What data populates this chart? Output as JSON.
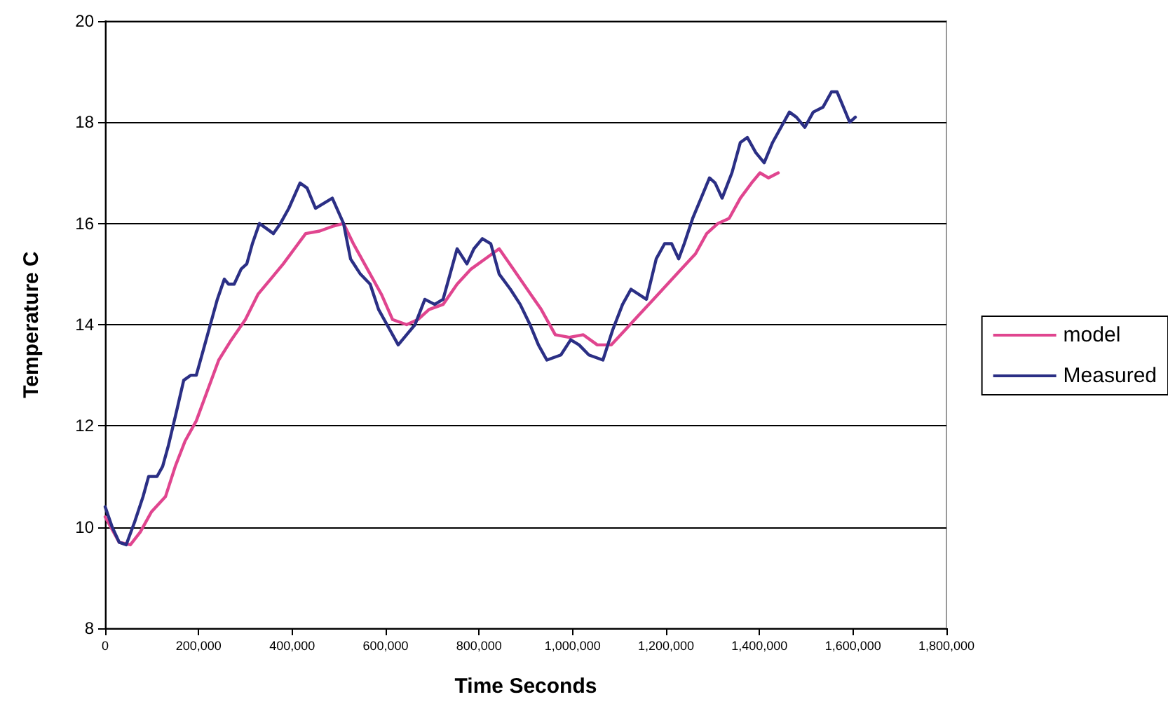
{
  "chart_data": {
    "type": "line",
    "xlabel": "Time Seconds",
    "ylabel": "Temperature C",
    "xlim": [
      0,
      1800000
    ],
    "ylim": [
      8,
      20
    ],
    "xticks": [
      {
        "value": 0,
        "label": "0"
      },
      {
        "value": 200000,
        "label": "200,000"
      },
      {
        "value": 400000,
        "label": "400,000"
      },
      {
        "value": 600000,
        "label": "600,000"
      },
      {
        "value": 800000,
        "label": "800,000"
      },
      {
        "value": 1000000,
        "label": "1,000,000"
      },
      {
        "value": 1200000,
        "label": "1,200,000"
      },
      {
        "value": 1400000,
        "label": "1,400,000"
      },
      {
        "value": 1600000,
        "label": "1,600,000"
      },
      {
        "value": 1800000,
        "label": "1,800,000"
      }
    ],
    "yticks": [
      8,
      10,
      12,
      14,
      16,
      18,
      20
    ],
    "grid": "y",
    "legend": "right",
    "marker": "none",
    "line_style": "solid",
    "series": [
      {
        "name": "model",
        "color": "#e0458f",
        "x": [
          0,
          30000,
          54000,
          75000,
          99000,
          129000,
          150000,
          171000,
          195000,
          219000,
          243000,
          270000,
          300000,
          327000,
          354000,
          381000,
          405000,
          429000,
          459000,
          489000,
          510000,
          531000,
          561000,
          591000,
          615000,
          645000,
          669000,
          693000,
          723000,
          753000,
          783000,
          813000,
          843000,
          873000,
          903000,
          933000,
          963000,
          993000,
          1023000,
          1053000,
          1083000,
          1113000,
          1143000,
          1173000,
          1203000,
          1233000,
          1263000,
          1287000,
          1311000,
          1335000,
          1359000,
          1383000,
          1401000,
          1419000,
          1440000
        ],
        "values": [
          10.2,
          9.7,
          9.65,
          9.9,
          10.3,
          10.6,
          11.2,
          11.7,
          12.1,
          12.7,
          13.3,
          13.7,
          14.1,
          14.6,
          14.9,
          15.2,
          15.5,
          15.8,
          15.85,
          15.95,
          16.0,
          15.6,
          15.1,
          14.6,
          14.1,
          14.0,
          14.1,
          14.3,
          14.4,
          14.8,
          15.1,
          15.3,
          15.5,
          15.1,
          14.7,
          14.3,
          13.8,
          13.75,
          13.8,
          13.6,
          13.6,
          13.9,
          14.2,
          14.5,
          14.8,
          15.1,
          15.4,
          15.8,
          16.0,
          16.1,
          16.5,
          16.8,
          17.0,
          16.9,
          17.0
        ]
      },
      {
        "name": "Measured",
        "color": "#2b2f85",
        "x": [
          0,
          15000,
          30000,
          45000,
          63000,
          81000,
          93000,
          111000,
          123000,
          135000,
          153000,
          168000,
          183000,
          195000,
          210000,
          225000,
          240000,
          255000,
          264000,
          276000,
          291000,
          303000,
          315000,
          330000,
          345000,
          360000,
          375000,
          393000,
          417000,
          432000,
          450000,
          468000,
          486000,
          510000,
          525000,
          546000,
          567000,
          585000,
          603000,
          627000,
          645000,
          663000,
          684000,
          705000,
          723000,
          741000,
          753000,
          774000,
          789000,
          807000,
          825000,
          843000,
          867000,
          888000,
          909000,
          927000,
          945000,
          975000,
          996000,
          1014000,
          1035000,
          1065000,
          1086000,
          1107000,
          1125000,
          1158000,
          1179000,
          1197000,
          1212000,
          1227000,
          1239000,
          1257000,
          1275000,
          1293000,
          1305000,
          1320000,
          1341000,
          1359000,
          1374000,
          1392000,
          1410000,
          1428000,
          1446000,
          1464000,
          1479000,
          1497000,
          1515000,
          1536000,
          1554000,
          1566000,
          1584000,
          1593000,
          1605000
        ],
        "values": [
          10.4,
          10.0,
          9.7,
          9.65,
          10.1,
          10.6,
          11.0,
          11.0,
          11.2,
          11.6,
          12.3,
          12.9,
          13.0,
          13.0,
          13.5,
          14.0,
          14.5,
          14.9,
          14.8,
          14.8,
          15.1,
          15.2,
          15.6,
          16.0,
          15.9,
          15.8,
          16.0,
          16.3,
          16.8,
          16.7,
          16.3,
          16.4,
          16.5,
          16.0,
          15.3,
          15.0,
          14.8,
          14.3,
          14.0,
          13.6,
          13.8,
          14.0,
          14.5,
          14.4,
          14.5,
          15.1,
          15.5,
          15.2,
          15.5,
          15.7,
          15.6,
          15.0,
          14.7,
          14.4,
          14.0,
          13.6,
          13.3,
          13.4,
          13.7,
          13.6,
          13.4,
          13.3,
          13.9,
          14.4,
          14.7,
          14.5,
          15.3,
          15.6,
          15.6,
          15.3,
          15.6,
          16.1,
          16.5,
          16.9,
          16.8,
          16.5,
          17.0,
          17.6,
          17.7,
          17.4,
          17.2,
          17.6,
          17.9,
          18.2,
          18.1,
          17.9,
          18.2,
          18.3,
          18.6,
          18.6,
          18.2,
          18.0,
          18.1
        ]
      }
    ]
  }
}
